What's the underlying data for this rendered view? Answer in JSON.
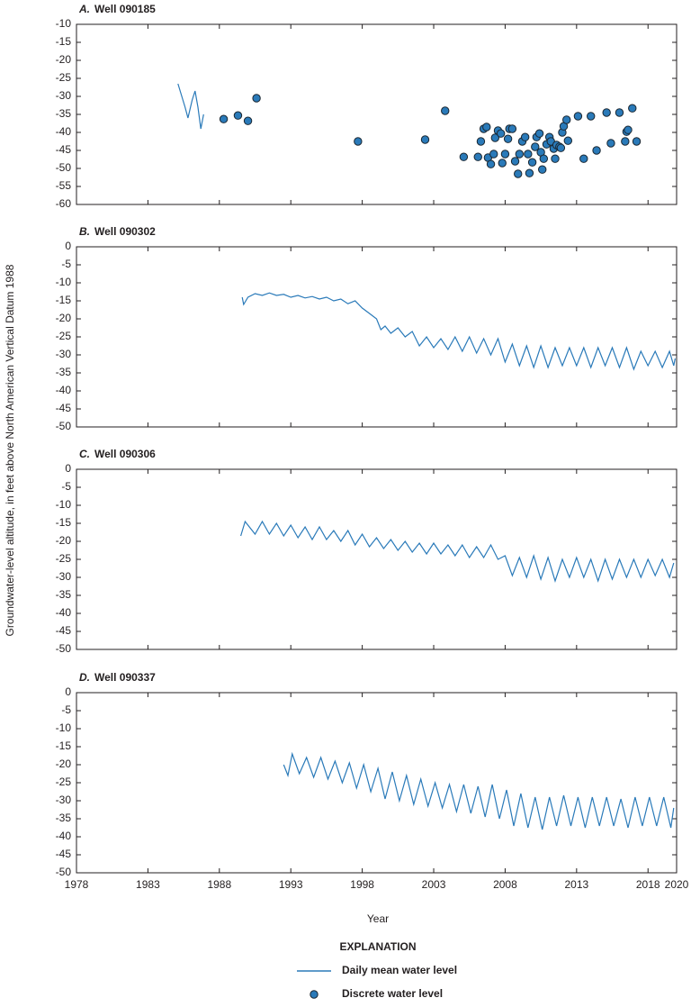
{
  "ylabel": "Groundwater-level altitude, in feet above North American Vertical Datum 1988",
  "xlabel": "Year",
  "legend": {
    "title": "EXPLANATION",
    "items": [
      {
        "label": "Daily mean water level",
        "kind": "line",
        "color": "#2a7ab9"
      },
      {
        "label": "Discrete water level",
        "kind": "scatter",
        "color": "#2a7ab9"
      }
    ]
  },
  "chart_data": [
    {
      "type": "line",
      "letter": "A.",
      "title": "Well 090185",
      "xlim": [
        1978,
        2020
      ],
      "xticks": [
        1978,
        1983,
        1988,
        1993,
        1998,
        2003,
        2008,
        2013,
        2018,
        2020
      ],
      "ylim": [
        -60,
        -10
      ],
      "yticks": [
        -10,
        -15,
        -20,
        -25,
        -30,
        -35,
        -40,
        -45,
        -50,
        -55,
        -60
      ],
      "series": [
        {
          "type": "line",
          "color": "#2a7ab9",
          "x": [
            1985.1,
            1985.6,
            1985.8,
            1986.1,
            1986.3,
            1986.5,
            1986.7,
            1986.9
          ],
          "values": [
            -26.5,
            -33,
            -36,
            -31,
            -28.5,
            -33,
            -39,
            -35
          ]
        },
        {
          "type": "scatter",
          "color": "#2a7ab9",
          "x": [
            1988.3,
            1989.3,
            1990.0,
            1990.6,
            1997.7,
            2002.4,
            2003.8,
            2005.1,
            2006.1,
            2006.3,
            2006.5,
            2006.7,
            2006.8,
            2007.0,
            2007.2,
            2007.3,
            2007.5,
            2007.7,
            2007.8,
            2008.0,
            2008.2,
            2008.3,
            2008.5,
            2008.7,
            2008.9,
            2009.0,
            2009.2,
            2009.4,
            2009.6,
            2009.7,
            2009.9,
            2010.1,
            2010.2,
            2010.4,
            2010.5,
            2010.6,
            2010.7,
            2010.9,
            2011.1,
            2011.2,
            2011.4,
            2011.5,
            2011.6,
            2011.8,
            2011.9,
            2012.0,
            2012.1,
            2012.3,
            2012.4,
            2013.1,
            2013.5,
            2014.0,
            2014.4,
            2015.1,
            2015.4,
            2016.0,
            2016.4,
            2016.5,
            2016.6,
            2016.9,
            2017.2
          ],
          "values": [
            -36.3,
            -35.3,
            -36.8,
            -30.5,
            -42.5,
            -42,
            -34,
            -46.8,
            -46.8,
            -42.5,
            -39,
            -38.5,
            -47,
            -48.8,
            -46,
            -41.5,
            -39.5,
            -40.3,
            -48.5,
            -46,
            -41.8,
            -39,
            -39,
            -48,
            -51.5,
            -46,
            -42.5,
            -41.3,
            -46,
            -51.3,
            -48.3,
            -44,
            -41.3,
            -40.3,
            -45.5,
            -50.3,
            -47.3,
            -43.3,
            -41.3,
            -42.5,
            -44.5,
            -47.3,
            -43.5,
            -44,
            -44.3,
            -40,
            -38.3,
            -36.5,
            -42.3,
            -35.5,
            -47.3,
            -35.5,
            -45,
            -34.5,
            -43,
            -34.5,
            -42.5,
            -39.8,
            -39.3,
            -33.3,
            -42.5
          ]
        }
      ]
    },
    {
      "type": "line",
      "letter": "B.",
      "title": "Well 090302",
      "xlim": [
        1978,
        2020
      ],
      "xticks": [
        1978,
        1983,
        1988,
        1993,
        1998,
        2003,
        2008,
        2013,
        2018,
        2020
      ],
      "ylim": [
        -50,
        0
      ],
      "yticks": [
        0,
        -5,
        -10,
        -15,
        -20,
        -25,
        -30,
        -35,
        -40,
        -45,
        -50
      ],
      "series": [
        {
          "type": "line",
          "color": "#2a7ab9",
          "x": [
            1989.6,
            1989.7,
            1990,
            1990.5,
            1991,
            1991.5,
            1992,
            1992.5,
            1993,
            1993.5,
            1994,
            1994.5,
            1995,
            1995.5,
            1996,
            1996.5,
            1997,
            1997.5,
            1998,
            1998.5,
            1999,
            1999.3,
            1999.6,
            2000,
            2000.5,
            2001,
            2001.5,
            2002,
            2002.5,
            2003,
            2003.5,
            2004,
            2004.5,
            2005,
            2005.5,
            2006,
            2006.5,
            2007,
            2007.5,
            2008,
            2008.5,
            2009,
            2009.5,
            2010,
            2010.5,
            2011,
            2011.5,
            2012,
            2012.5,
            2013,
            2013.5,
            2014,
            2014.5,
            2015,
            2015.5,
            2016,
            2016.5,
            2017,
            2017.5,
            2018,
            2018.5,
            2019,
            2019.5,
            2019.8,
            2019.9
          ],
          "values": [
            -14,
            -16,
            -14,
            -13,
            -13.5,
            -12.8,
            -13.5,
            -13.2,
            -14,
            -13.5,
            -14.2,
            -13.8,
            -14.5,
            -14,
            -15,
            -14.5,
            -15.8,
            -15,
            -17,
            -18.5,
            -20,
            -23,
            -22,
            -24,
            -22.5,
            -25,
            -23.5,
            -27.5,
            -25,
            -28,
            -25.5,
            -28.5,
            -25,
            -29,
            -25,
            -29.5,
            -25.5,
            -30,
            -25.5,
            -32,
            -27,
            -33,
            -27.5,
            -33.5,
            -27.5,
            -33.5,
            -28,
            -33,
            -28,
            -33,
            -28,
            -33.5,
            -28,
            -33,
            -28,
            -33.5,
            -28,
            -34,
            -29,
            -33,
            -29,
            -33.5,
            -29,
            -33,
            -31
          ]
        }
      ]
    },
    {
      "type": "line",
      "letter": "C.",
      "title": "Well 090306",
      "xlim": [
        1978,
        2020
      ],
      "xticks": [
        1978,
        1983,
        1988,
        1993,
        1998,
        2003,
        2008,
        2013,
        2018,
        2020
      ],
      "ylim": [
        -50,
        0
      ],
      "yticks": [
        0,
        -5,
        -10,
        -15,
        -20,
        -25,
        -30,
        -35,
        -40,
        -45,
        -50
      ],
      "series": [
        {
          "type": "line",
          "color": "#2a7ab9",
          "x": [
            1989.5,
            1989.8,
            1990.5,
            1991,
            1991.5,
            1992,
            1992.5,
            1993,
            1993.5,
            1994,
            1994.5,
            1995,
            1995.5,
            1996,
            1996.5,
            1997,
            1997.5,
            1998,
            1998.5,
            1999,
            1999.5,
            2000,
            2000.5,
            2001,
            2001.5,
            2002,
            2002.5,
            2003,
            2003.5,
            2004,
            2004.5,
            2005,
            2005.5,
            2006,
            2006.5,
            2007,
            2007.5,
            2008,
            2008.5,
            2009,
            2009.5,
            2010,
            2010.5,
            2011,
            2011.5,
            2012,
            2012.5,
            2013,
            2013.5,
            2014,
            2014.5,
            2015,
            2015.5,
            2016,
            2016.5,
            2017,
            2017.5,
            2018,
            2018.5,
            2019,
            2019.5,
            2019.8
          ],
          "values": [
            -18.5,
            -14.5,
            -18,
            -14.5,
            -18,
            -15,
            -18.5,
            -15.5,
            -19,
            -16,
            -19.5,
            -16,
            -19.5,
            -17,
            -20,
            -17,
            -21,
            -18,
            -21.5,
            -19,
            -22,
            -19.5,
            -22.5,
            -20,
            -23,
            -20.5,
            -23.5,
            -20.5,
            -23.5,
            -21,
            -24,
            -21,
            -24.5,
            -21.5,
            -24.5,
            -21,
            -25,
            -24,
            -29.5,
            -24.5,
            -30,
            -24,
            -30.5,
            -24.5,
            -31,
            -25,
            -30,
            -24.5,
            -30,
            -25,
            -31,
            -25,
            -30.5,
            -25,
            -30,
            -25,
            -30,
            -25,
            -29.5,
            -25,
            -30,
            -26
          ]
        }
      ]
    },
    {
      "type": "line",
      "letter": "D.",
      "title": "Well 090337",
      "xlim": [
        1978,
        2020
      ],
      "xticks": [
        1978,
        1983,
        1988,
        1993,
        1998,
        2003,
        2008,
        2013,
        2018,
        2020
      ],
      "ylim": [
        -50,
        0
      ],
      "yticks": [
        0,
        -5,
        -10,
        -15,
        -20,
        -25,
        -30,
        -35,
        -40,
        -45,
        -50
      ],
      "xticklabels": true,
      "series": [
        {
          "type": "line",
          "color": "#2a7ab9",
          "x": [
            1992.5,
            1992.8,
            1993.1,
            1993.6,
            1994.1,
            1994.6,
            1995.1,
            1995.6,
            1996.1,
            1996.6,
            1997.1,
            1997.6,
            1998.1,
            1998.6,
            1999.1,
            1999.6,
            2000.1,
            2000.6,
            2001.1,
            2001.6,
            2002.1,
            2002.6,
            2003.1,
            2003.6,
            2004.1,
            2004.6,
            2005.1,
            2005.6,
            2006.1,
            2006.6,
            2007.1,
            2007.6,
            2008.1,
            2008.6,
            2009.1,
            2009.6,
            2010.1,
            2010.6,
            2011.1,
            2011.6,
            2012.1,
            2012.6,
            2013.1,
            2013.6,
            2014.1,
            2014.6,
            2015.1,
            2015.6,
            2016.1,
            2016.6,
            2017.1,
            2017.6,
            2018.1,
            2018.6,
            2019.1,
            2019.6,
            2019.8
          ],
          "values": [
            -20,
            -23,
            -17,
            -22.5,
            -18,
            -23.5,
            -18,
            -24,
            -19,
            -25,
            -19.5,
            -26.5,
            -20,
            -27.5,
            -21,
            -29.5,
            -22,
            -30,
            -23,
            -31,
            -24,
            -31.5,
            -25,
            -32,
            -25.5,
            -33,
            -25.5,
            -33.5,
            -26,
            -34.5,
            -25.5,
            -35,
            -27,
            -37,
            -28,
            -37.5,
            -29,
            -38,
            -29,
            -37,
            -28.5,
            -37,
            -29,
            -37.5,
            -29,
            -37,
            -29,
            -37,
            -29.5,
            -37.5,
            -29,
            -37,
            -29,
            -37,
            -29,
            -37.5,
            -32
          ]
        }
      ]
    }
  ]
}
